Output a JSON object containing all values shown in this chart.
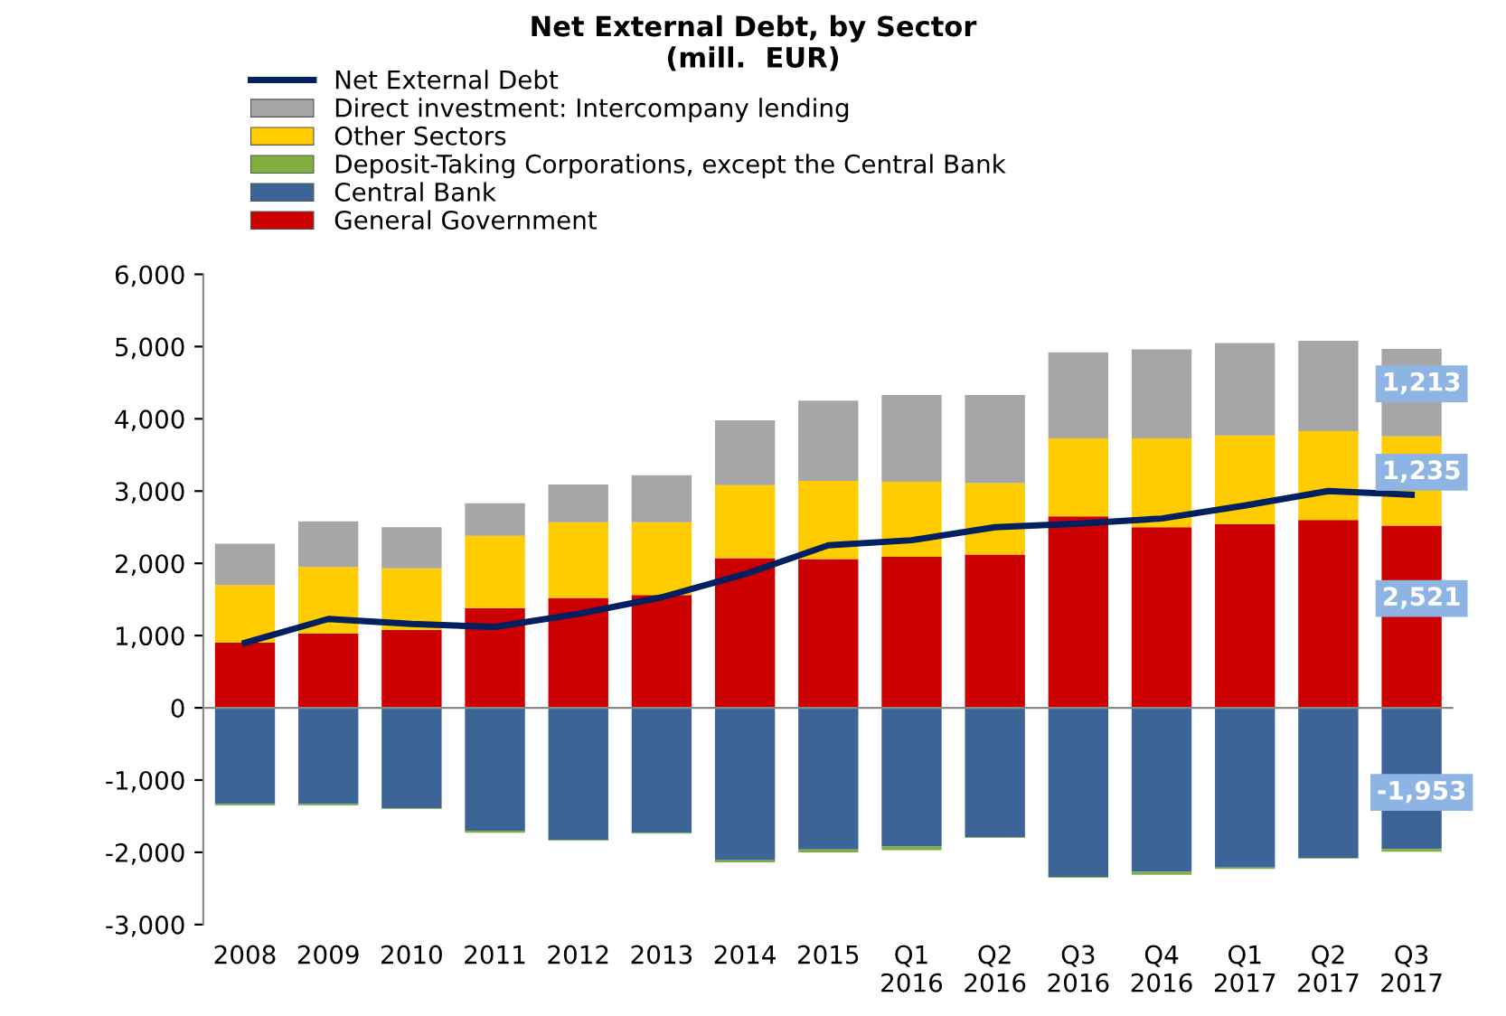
{
  "chart_data": {
    "type": "bar",
    "stacked": true,
    "title": "Net External Debt, by Sector\n(mill.  EUR)",
    "categories": [
      "2008",
      "2009",
      "2010",
      "2011",
      "2012",
      "2013",
      "2014",
      "2015",
      "Q1\n2016",
      "Q2\n2016",
      "Q3\n2016",
      "Q4\n2016",
      "Q1\n2017",
      "Q2\n2017",
      "Q3\n2017"
    ],
    "series": [
      {
        "name": "General Government",
        "color": "#cc0000",
        "values": [
          900,
          1030,
          1080,
          1380,
          1520,
          1560,
          2070,
          2060,
          2090,
          2120,
          2650,
          2500,
          2540,
          2600,
          2521
        ],
        "value_labels": [
          null,
          null,
          null,
          null,
          null,
          null,
          null,
          null,
          null,
          null,
          null,
          null,
          null,
          null,
          "2,521"
        ]
      },
      {
        "name": "Central Bank",
        "color": "#3c6496",
        "values": [
          -1330,
          -1330,
          -1390,
          -1700,
          -1830,
          -1730,
          -2110,
          -1960,
          -1920,
          -1790,
          -2340,
          -2270,
          -2210,
          -2080,
          -1953
        ],
        "value_labels": [
          null,
          null,
          null,
          null,
          null,
          null,
          null,
          null,
          null,
          null,
          null,
          null,
          null,
          null,
          "-1,953"
        ]
      },
      {
        "name": "Deposit-Taking Corporations, except the Central Bank",
        "color": "#7fb03f",
        "values": [
          -20,
          -20,
          -10,
          -30,
          -10,
          -10,
          -30,
          -40,
          -50,
          -10,
          -10,
          -40,
          -20,
          -10,
          -40
        ]
      },
      {
        "name": "Other Sectors",
        "color": "#ffcc00",
        "values": [
          800,
          920,
          850,
          1000,
          1050,
          1010,
          1010,
          1080,
          1040,
          990,
          1080,
          1230,
          1230,
          1230,
          1235
        ],
        "value_labels": [
          null,
          null,
          null,
          null,
          null,
          null,
          null,
          null,
          null,
          null,
          null,
          null,
          null,
          null,
          "1,235"
        ]
      },
      {
        "name": "Direct investment: Intercompany lending",
        "color": "#a6a6a6",
        "values": [
          570,
          630,
          570,
          450,
          520,
          650,
          900,
          1110,
          1200,
          1220,
          1190,
          1230,
          1280,
          1250,
          1213
        ],
        "value_labels": [
          null,
          null,
          null,
          null,
          null,
          null,
          null,
          null,
          null,
          null,
          null,
          null,
          null,
          null,
          "1,213"
        ]
      },
      {
        "name": "Net External Debt",
        "type": "line",
        "color": "#002060",
        "values": [
          900,
          1230,
          1160,
          1120,
          1300,
          1530,
          1850,
          2250,
          2320,
          2500,
          2550,
          2620,
          2800,
          3000,
          2950
        ]
      }
    ],
    "ylim": [
      -3000,
      6000
    ],
    "yticks": [
      {
        "value": -3000,
        "label": "-3,000"
      },
      {
        "value": -2000,
        "label": "-2,000"
      },
      {
        "value": -1000,
        "label": "-1,000"
      },
      0,
      {
        "value": 1000,
        "label": "1,000"
      },
      {
        "value": 2000,
        "label": "2,000"
      },
      {
        "value": 3000,
        "label": "3,000"
      },
      {
        "value": 4000,
        "label": "4,000"
      },
      {
        "value": 5000,
        "label": "5,000"
      },
      {
        "value": 6000,
        "label": "6,000"
      }
    ],
    "ref_lines": [
      {
        "axis": "y",
        "value": 0,
        "color": "#888888",
        "line_style": "solid"
      }
    ],
    "grid": false,
    "legend": "top left",
    "marker": "none",
    "line_style": "solid"
  }
}
